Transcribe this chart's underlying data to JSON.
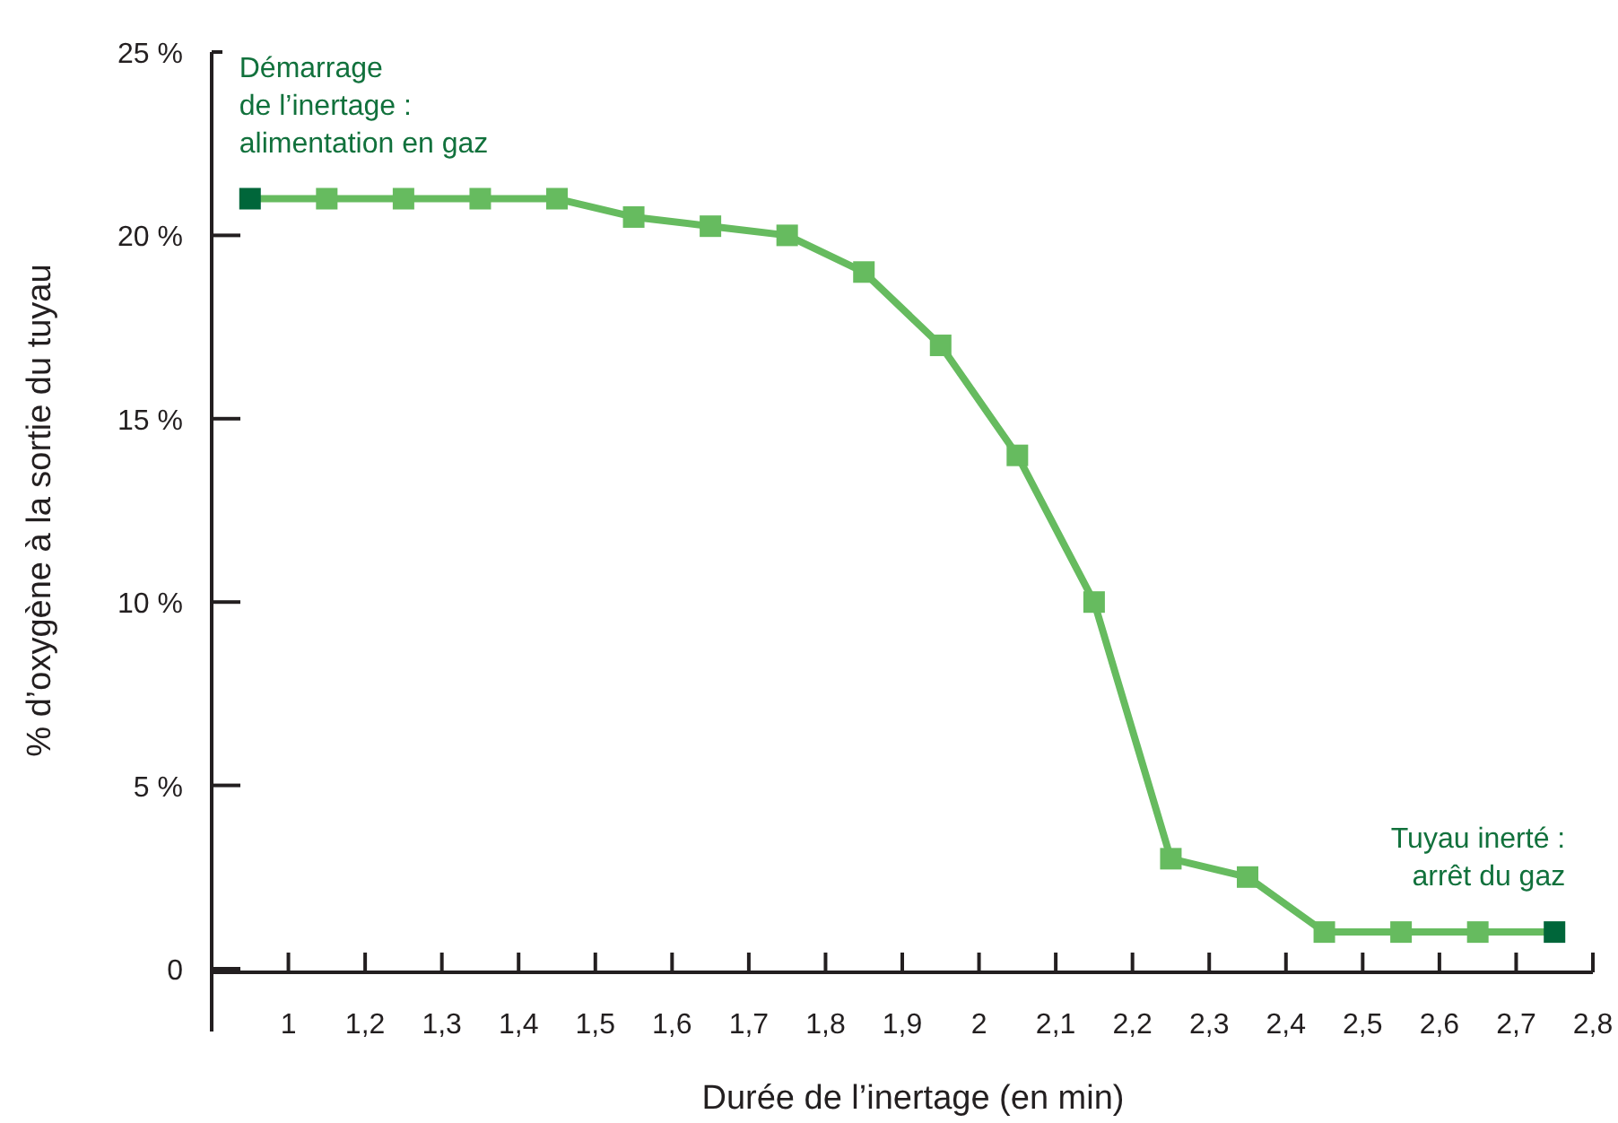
{
  "chart_data": {
    "type": "line",
    "xlabel": "Durée de l’inertage (en min)",
    "ylabel": "% d’oxygène à la sortie du tuyau",
    "x": [
      1.05,
      1.15,
      1.25,
      1.35,
      1.45,
      1.55,
      1.65,
      1.75,
      1.85,
      1.95,
      2.05,
      2.15,
      2.25,
      2.35,
      2.45,
      2.55,
      2.65,
      2.75
    ],
    "series": [
      {
        "color": "#66bb5f",
        "colors": [
          "#00663a",
          "#66bb5f",
          "#66bb5f",
          "#66bb5f",
          "#66bb5f",
          "#66bb5f",
          "#66bb5f",
          "#66bb5f",
          "#66bb5f",
          "#66bb5f",
          "#66bb5f",
          "#66bb5f",
          "#66bb5f",
          "#66bb5f",
          "#66bb5f",
          "#66bb5f",
          "#66bb5f",
          "#00663a"
        ],
        "values": [
          21,
          21,
          21,
          21,
          21,
          20.5,
          20.25,
          20,
          19,
          17,
          14,
          10,
          3,
          2.5,
          1,
          1,
          1,
          1
        ]
      }
    ],
    "xlim": [
      1.0,
      2.8
    ],
    "xticks": [
      {
        "value": 1.1,
        "label": "1"
      },
      {
        "value": 1.2,
        "label": "1,2"
      },
      {
        "value": 1.3,
        "label": "1,3"
      },
      {
        "value": 1.4,
        "label": "1,4"
      },
      {
        "value": 1.5,
        "label": "1,5"
      },
      {
        "value": 1.6,
        "label": "1,6"
      },
      {
        "value": 1.7,
        "label": "1,7"
      },
      {
        "value": 1.8,
        "label": "1,8"
      },
      {
        "value": 1.9,
        "label": "1,9"
      },
      {
        "value": 2.0,
        "label": "2"
      },
      {
        "value": 2.1,
        "label": "2,1"
      },
      {
        "value": 2.2,
        "label": "2,2"
      },
      {
        "value": 2.3,
        "label": "2,3"
      },
      {
        "value": 2.4,
        "label": "2,4"
      },
      {
        "value": 2.5,
        "label": "2,5"
      },
      {
        "value": 2.6,
        "label": "2,6"
      },
      {
        "value": 2.7,
        "label": "2,7"
      },
      {
        "value": 2.8,
        "label": "2,8"
      }
    ],
    "ylim": [
      0,
      25
    ],
    "yticks": [
      {
        "value": 0,
        "label": "0"
      },
      {
        "value": 5,
        "label": "5 %"
      },
      {
        "value": 10,
        "label": "10 %"
      },
      {
        "value": 15,
        "label": "15 %"
      },
      {
        "value": 20,
        "label": "20 %"
      },
      {
        "value": 25,
        "label": "25 %"
      }
    ],
    "marker": "square",
    "line_style": "solid",
    "grid": false,
    "annotations": [
      {
        "text": "Démarrage\nde l’inertage :\nalimentation en gaz",
        "x": 1.05,
        "y": 21
      },
      {
        "text": "Tuyau inerté :\narrêt du gaz",
        "x": 2.75,
        "y": 1
      }
    ]
  }
}
